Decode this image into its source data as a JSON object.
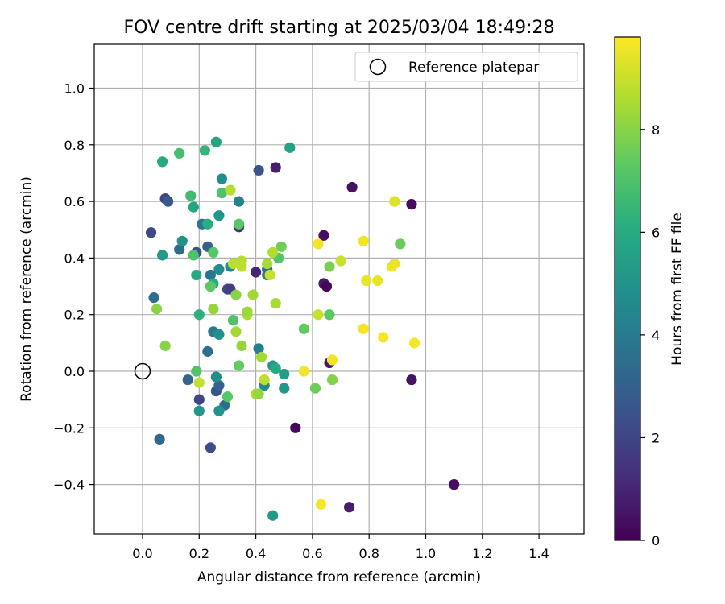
{
  "chart_data": {
    "type": "scatter",
    "title": "FOV centre drift starting at 2025/03/04 18:49:28",
    "xlabel": "Angular distance from reference (arcmin)",
    "ylabel": "Rotation from reference (arcmin)",
    "xlim": [
      -0.17,
      1.55
    ],
    "ylim": [
      -0.575,
      1.155
    ],
    "x_ticks": [
      "0.0",
      "0.2",
      "0.4",
      "0.6",
      "0.8",
      "1.0",
      "1.2",
      "1.4"
    ],
    "x_tick_values": [
      0.0,
      0.2,
      0.4,
      0.6,
      0.8,
      1.0,
      1.2,
      1.4
    ],
    "y_ticks": [
      "−0.4",
      "−0.2",
      "0.0",
      "0.2",
      "0.4",
      "0.6",
      "0.8",
      "1.0"
    ],
    "y_tick_values": [
      -0.4,
      -0.2,
      0.0,
      0.2,
      0.4,
      0.6,
      0.8,
      1.0
    ],
    "grid": true,
    "legend": {
      "position": "top-right",
      "entries": [
        "Reference platepar"
      ]
    },
    "reference_point": {
      "x": 0.0,
      "y": 0.0,
      "label": "Reference platepar"
    },
    "colorbar": {
      "label": "Hours from first FF file",
      "colormap": "viridis",
      "range": [
        0,
        9.8
      ],
      "ticks": [
        "0",
        "2",
        "4",
        "6",
        "8"
      ],
      "tick_values": [
        0,
        2,
        4,
        6,
        8
      ]
    },
    "points": [
      {
        "x": 0.95,
        "y": 0.59,
        "c": 0.3
      },
      {
        "x": 0.74,
        "y": 0.65,
        "c": 0.5
      },
      {
        "x": 0.47,
        "y": 0.72,
        "c": 0.8
      },
      {
        "x": 0.64,
        "y": 0.48,
        "c": 0.4
      },
      {
        "x": 0.64,
        "y": 0.31,
        "c": 0.6
      },
      {
        "x": 0.65,
        "y": 0.3,
        "c": 0.2
      },
      {
        "x": 0.66,
        "y": 0.03,
        "c": 0.7
      },
      {
        "x": 0.95,
        "y": -0.03,
        "c": 0.5
      },
      {
        "x": 0.54,
        "y": -0.2,
        "c": 0.2
      },
      {
        "x": 1.1,
        "y": -0.4,
        "c": 0.4
      },
      {
        "x": 0.73,
        "y": -0.48,
        "c": 0.8
      },
      {
        "x": 0.4,
        "y": 0.35,
        "c": 1.0
      },
      {
        "x": 0.41,
        "y": 0.71,
        "c": 2.5
      },
      {
        "x": 0.03,
        "y": 0.49,
        "c": 2.2
      },
      {
        "x": 0.08,
        "y": 0.61,
        "c": 2.0
      },
      {
        "x": 0.09,
        "y": 0.6,
        "c": 2.7
      },
      {
        "x": 0.34,
        "y": 0.51,
        "c": 1.2
      },
      {
        "x": 0.3,
        "y": 0.29,
        "c": 2.2
      },
      {
        "x": 0.31,
        "y": 0.29,
        "c": 1.8
      },
      {
        "x": 0.04,
        "y": 0.26,
        "c": 3.5
      },
      {
        "x": 0.06,
        "y": -0.24,
        "c": 3.3
      },
      {
        "x": 0.2,
        "y": -0.1,
        "c": 2.0
      },
      {
        "x": 0.24,
        "y": -0.27,
        "c": 2.3
      },
      {
        "x": 0.26,
        "y": -0.07,
        "c": 2.5
      },
      {
        "x": 0.27,
        "y": -0.05,
        "c": 3.0
      },
      {
        "x": 0.29,
        "y": -0.12,
        "c": 3.5
      },
      {
        "x": 0.16,
        "y": -0.03,
        "c": 3.2
      },
      {
        "x": 0.13,
        "y": 0.43,
        "c": 3.4
      },
      {
        "x": 0.21,
        "y": 0.52,
        "c": 3.8
      },
      {
        "x": 0.23,
        "y": 0.44,
        "c": 3.0
      },
      {
        "x": 0.19,
        "y": 0.42,
        "c": 2.4
      },
      {
        "x": 0.23,
        "y": 0.07,
        "c": 3.6
      },
      {
        "x": 0.24,
        "y": 0.34,
        "c": 3.8
      },
      {
        "x": 0.25,
        "y": 0.14,
        "c": 4.0
      },
      {
        "x": 0.41,
        "y": 0.08,
        "c": 4.1
      },
      {
        "x": 0.43,
        "y": -0.05,
        "c": 4.5
      },
      {
        "x": 0.44,
        "y": 0.34,
        "c": 4.3
      },
      {
        "x": 0.44,
        "y": 0.36,
        "c": 3.6
      },
      {
        "x": 0.34,
        "y": 0.6,
        "c": 4.3
      },
      {
        "x": 0.28,
        "y": 0.68,
        "c": 4.8
      },
      {
        "x": 0.14,
        "y": 0.46,
        "c": 5.0
      },
      {
        "x": 0.27,
        "y": 0.36,
        "c": 4.7
      },
      {
        "x": 0.31,
        "y": 0.37,
        "c": 4.5
      },
      {
        "x": 0.27,
        "y": 0.13,
        "c": 4.9
      },
      {
        "x": 0.26,
        "y": -0.02,
        "c": 4.8
      },
      {
        "x": 0.27,
        "y": -0.14,
        "c": 5.0
      },
      {
        "x": 0.2,
        "y": -0.14,
        "c": 5.1
      },
      {
        "x": 0.27,
        "y": 0.55,
        "c": 5.1
      },
      {
        "x": 0.07,
        "y": 0.41,
        "c": 5.3
      },
      {
        "x": 0.46,
        "y": 0.02,
        "c": 5.2
      },
      {
        "x": 0.46,
        "y": -0.51,
        "c": 5.3
      },
      {
        "x": 0.5,
        "y": -0.01,
        "c": 5.4
      },
      {
        "x": 0.5,
        "y": -0.06,
        "c": 5.2
      },
      {
        "x": 0.47,
        "y": 0.01,
        "c": 5.9
      },
      {
        "x": 0.52,
        "y": 0.79,
        "c": 5.6
      },
      {
        "x": 0.18,
        "y": 0.58,
        "c": 5.7
      },
      {
        "x": 0.19,
        "y": 0.34,
        "c": 5.9
      },
      {
        "x": 0.26,
        "y": 0.81,
        "c": 5.7
      },
      {
        "x": 0.07,
        "y": 0.74,
        "c": 5.9
      },
      {
        "x": 0.2,
        "y": 0.2,
        "c": 6.2
      },
      {
        "x": 0.22,
        "y": 0.78,
        "c": 6.4
      },
      {
        "x": 0.23,
        "y": 0.52,
        "c": 6.1
      },
      {
        "x": 0.25,
        "y": 0.31,
        "c": 6.0
      },
      {
        "x": 0.17,
        "y": 0.62,
        "c": 6.7
      },
      {
        "x": 0.13,
        "y": 0.77,
        "c": 6.8
      },
      {
        "x": 0.28,
        "y": 0.63,
        "c": 7.0
      },
      {
        "x": 0.18,
        "y": 0.41,
        "c": 7.0
      },
      {
        "x": 0.25,
        "y": 0.42,
        "c": 7.2
      },
      {
        "x": 0.24,
        "y": 0.3,
        "c": 7.3
      },
      {
        "x": 0.32,
        "y": 0.18,
        "c": 7.0
      },
      {
        "x": 0.34,
        "y": 0.52,
        "c": 7.2
      },
      {
        "x": 0.34,
        "y": 0.02,
        "c": 7.4
      },
      {
        "x": 0.3,
        "y": -0.09,
        "c": 7.2
      },
      {
        "x": 0.19,
        "y": 0.0,
        "c": 7.1
      },
      {
        "x": 0.48,
        "y": 0.4,
        "c": 7.1
      },
      {
        "x": 0.49,
        "y": 0.44,
        "c": 7.6
      },
      {
        "x": 0.57,
        "y": 0.15,
        "c": 7.4
      },
      {
        "x": 0.61,
        "y": -0.06,
        "c": 7.6
      },
      {
        "x": 0.66,
        "y": 0.2,
        "c": 7.3
      },
      {
        "x": 0.66,
        "y": 0.37,
        "c": 7.8
      },
      {
        "x": 0.67,
        "y": -0.03,
        "c": 7.9
      },
      {
        "x": 0.91,
        "y": 0.45,
        "c": 7.5
      },
      {
        "x": 0.08,
        "y": 0.09,
        "c": 8.0
      },
      {
        "x": 0.05,
        "y": 0.22,
        "c": 8.0
      },
      {
        "x": 0.25,
        "y": 0.22,
        "c": 8.2
      },
      {
        "x": 0.33,
        "y": 0.27,
        "c": 8.0
      },
      {
        "x": 0.33,
        "y": 0.14,
        "c": 8.4
      },
      {
        "x": 0.35,
        "y": 0.09,
        "c": 8.2
      },
      {
        "x": 0.37,
        "y": 0.2,
        "c": 8.5
      },
      {
        "x": 0.37,
        "y": 0.21,
        "c": 8.3
      },
      {
        "x": 0.39,
        "y": 0.27,
        "c": 8.4
      },
      {
        "x": 0.4,
        "y": -0.08,
        "c": 8.6
      },
      {
        "x": 0.41,
        "y": -0.08,
        "c": 8.2
      },
      {
        "x": 0.42,
        "y": 0.05,
        "c": 8.4
      },
      {
        "x": 0.43,
        "y": -0.03,
        "c": 8.8
      },
      {
        "x": 0.44,
        "y": 0.38,
        "c": 8.5
      },
      {
        "x": 0.45,
        "y": 0.34,
        "c": 9.0
      },
      {
        "x": 0.46,
        "y": 0.42,
        "c": 8.6
      },
      {
        "x": 0.47,
        "y": 0.24,
        "c": 8.5
      },
      {
        "x": 0.32,
        "y": 0.38,
        "c": 8.8
      },
      {
        "x": 0.35,
        "y": 0.39,
        "c": 8.7
      },
      {
        "x": 0.35,
        "y": 0.37,
        "c": 8.8
      },
      {
        "x": 0.31,
        "y": 0.64,
        "c": 8.7
      },
      {
        "x": 0.2,
        "y": -0.04,
        "c": 8.9
      },
      {
        "x": 0.62,
        "y": 0.2,
        "c": 9.0
      },
      {
        "x": 0.7,
        "y": 0.39,
        "c": 9.0
      },
      {
        "x": 0.62,
        "y": 0.45,
        "c": 9.6
      },
      {
        "x": 0.57,
        "y": 0.0,
        "c": 9.6
      },
      {
        "x": 0.67,
        "y": 0.04,
        "c": 9.6
      },
      {
        "x": 0.63,
        "y": -0.47,
        "c": 9.7
      },
      {
        "x": 0.78,
        "y": 0.15,
        "c": 9.7
      },
      {
        "x": 0.78,
        "y": 0.46,
        "c": 9.6
      },
      {
        "x": 0.79,
        "y": 0.32,
        "c": 9.5
      },
      {
        "x": 0.83,
        "y": 0.32,
        "c": 9.5
      },
      {
        "x": 0.85,
        "y": 0.12,
        "c": 9.7
      },
      {
        "x": 0.88,
        "y": 0.37,
        "c": 9.6
      },
      {
        "x": 0.89,
        "y": 0.38,
        "c": 9.5
      },
      {
        "x": 0.89,
        "y": 0.6,
        "c": 9.3
      },
      {
        "x": 0.96,
        "y": 0.1,
        "c": 9.7
      }
    ]
  }
}
